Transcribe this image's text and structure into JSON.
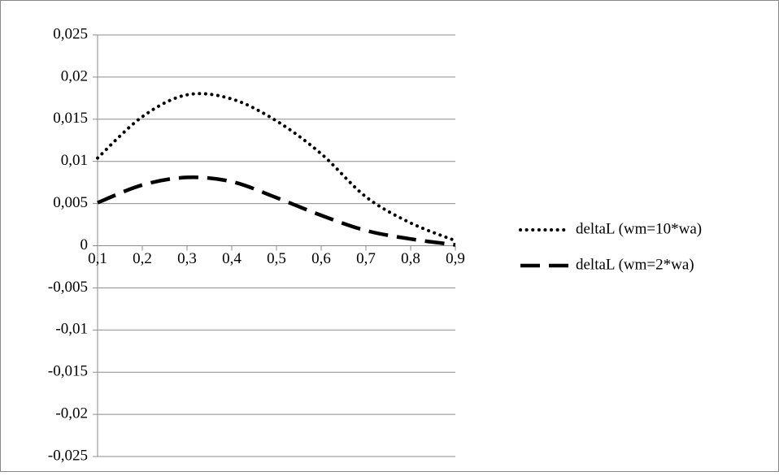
{
  "chart_data": {
    "type": "line",
    "x": [
      0.1,
      0.2,
      0.3,
      0.4,
      0.5,
      0.6,
      0.7,
      0.8,
      0.9
    ],
    "series": [
      {
        "name": "deltaL (wm=10*wa)",
        "color": "#000000",
        "line_style": "dotted",
        "values": [
          0.0104,
          0.0153,
          0.0179,
          0.0174,
          0.0148,
          0.0109,
          0.0058,
          0.0027,
          0.0006
        ]
      },
      {
        "name": "deltaL (wm=2*wa)",
        "color": "#000000",
        "line_style": "dashed",
        "values": [
          0.0051,
          0.0072,
          0.0081,
          0.0076,
          0.0057,
          0.0036,
          0.0018,
          0.0008,
          0.0001
        ]
      }
    ],
    "xlim": [
      0.1,
      0.9
    ],
    "xticks": [
      {
        "value": 0.1,
        "label": "0,1"
      },
      {
        "value": 0.2,
        "label": "0,2"
      },
      {
        "value": 0.3,
        "label": "0,3"
      },
      {
        "value": 0.4,
        "label": "0,4"
      },
      {
        "value": 0.5,
        "label": "0,5"
      },
      {
        "value": 0.6,
        "label": "0,6"
      },
      {
        "value": 0.7,
        "label": "0,7"
      },
      {
        "value": 0.8,
        "label": "0,8"
      },
      {
        "value": 0.9,
        "label": "0,9"
      }
    ],
    "ylim": [
      -0.025,
      0.025
    ],
    "yticks": [
      {
        "value": 0.025,
        "label": "0,025"
      },
      {
        "value": 0.02,
        "label": "0,02"
      },
      {
        "value": 0.015,
        "label": "0,015"
      },
      {
        "value": 0.01,
        "label": "0,01"
      },
      {
        "value": 0.005,
        "label": "0,005"
      },
      0,
      {
        "value": -0.005,
        "label": "-0,005"
      },
      {
        "value": -0.01,
        "label": "-0,01"
      },
      {
        "value": -0.015,
        "label": "-0,015"
      },
      {
        "value": -0.02,
        "label": "-0,02"
      },
      {
        "value": -0.025,
        "label": "-0,025"
      }
    ],
    "grid": true,
    "legend": "right"
  }
}
